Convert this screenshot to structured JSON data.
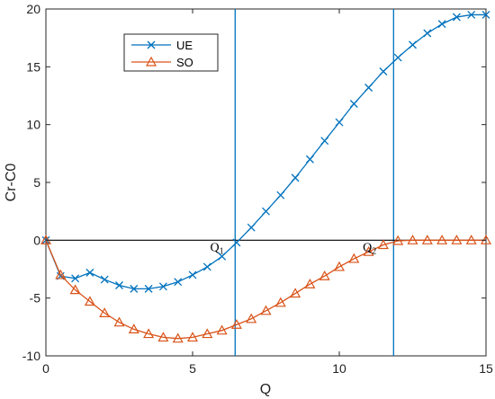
{
  "chart_data": {
    "type": "line",
    "xlabel": "Q",
    "ylabel": "Cr-C0",
    "xlim": [
      0,
      15
    ],
    "ylim": [
      -10,
      20
    ],
    "xticks": [
      0,
      5,
      10,
      15
    ],
    "yticks": [
      -10,
      -5,
      0,
      5,
      10,
      15,
      20
    ],
    "grid": false,
    "legend_position": "top-left",
    "zero_line": true,
    "vlines": [
      {
        "x": 6.45,
        "color": "#0072bd"
      },
      {
        "x": 11.85,
        "color": "#0072bd"
      }
    ],
    "annotations": [
      {
        "base": "Q",
        "sub": "1",
        "x": 5.6,
        "y": 0
      },
      {
        "base": "Q",
        "sub": "2",
        "x": 10.8,
        "y": 0
      }
    ],
    "series": [
      {
        "name": "UE",
        "color": "#0072bd",
        "marker": "x",
        "x": [
          0,
          0.5,
          1,
          1.5,
          2,
          2.5,
          3,
          3.5,
          4,
          4.5,
          5,
          5.5,
          6,
          6.5,
          7,
          7.5,
          8,
          8.5,
          9,
          9.5,
          10,
          10.5,
          11,
          11.5,
          12,
          12.5,
          13,
          13.5,
          14,
          14.5,
          15
        ],
        "y": [
          0,
          -3.1,
          -3.3,
          -2.8,
          -3.4,
          -3.9,
          -4.2,
          -4.2,
          -4.0,
          -3.6,
          -3.0,
          -2.3,
          -1.4,
          -0.2,
          1.1,
          2.5,
          3.9,
          5.4,
          7.0,
          8.6,
          10.2,
          11.8,
          13.2,
          14.6,
          15.8,
          16.9,
          17.9,
          18.7,
          19.3,
          19.5,
          19.5
        ]
      },
      {
        "name": "SO",
        "color": "#d95319",
        "marker": "triangle",
        "x": [
          0,
          0.5,
          1,
          1.5,
          2,
          2.5,
          3,
          3.5,
          4,
          4.5,
          5,
          5.5,
          6,
          6.5,
          7,
          7.5,
          8,
          8.5,
          9,
          9.5,
          10,
          10.5,
          11,
          11.5,
          12,
          12.5,
          13,
          13.5,
          14,
          14.5,
          15
        ],
        "y": [
          0,
          -3.0,
          -4.3,
          -5.3,
          -6.3,
          -7.1,
          -7.7,
          -8.1,
          -8.4,
          -8.5,
          -8.4,
          -8.1,
          -7.8,
          -7.3,
          -6.8,
          -6.1,
          -5.4,
          -4.6,
          -3.8,
          -3.1,
          -2.3,
          -1.6,
          -1.0,
          -0.4,
          -0.05,
          0,
          0,
          0,
          0,
          0,
          0
        ]
      }
    ]
  }
}
